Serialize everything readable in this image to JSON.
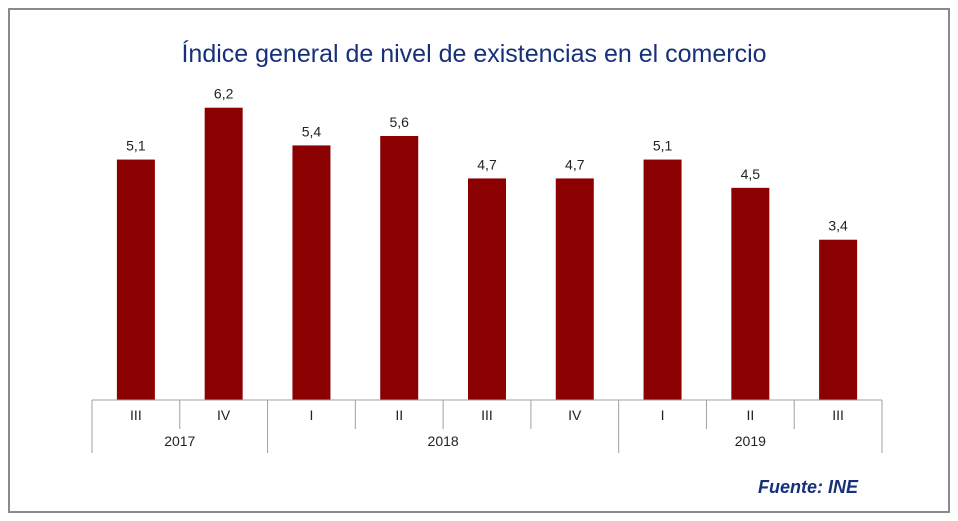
{
  "title": "Índice general de nivel de existencias en el comercio",
  "source": "Fuente: INE",
  "colors": {
    "bar": "#8b0000",
    "title": "#16307a",
    "axis": "#a0a0a0"
  },
  "chart_data": {
    "type": "bar",
    "title": "Índice general de nivel de existencias en el comercio",
    "categories": [
      "III",
      "IV",
      "I",
      "II",
      "III",
      "IV",
      "I",
      "II",
      "III"
    ],
    "groups": [
      {
        "label": "2017",
        "count": 2
      },
      {
        "label": "2018",
        "count": 4
      },
      {
        "label": "2019",
        "count": 3
      }
    ],
    "values": [
      5.1,
      6.2,
      5.4,
      5.6,
      4.7,
      4.7,
      5.1,
      4.5,
      3.4
    ],
    "value_labels": [
      "5,1",
      "6,2",
      "5,4",
      "5,6",
      "4,7",
      "4,7",
      "5,1",
      "4,5",
      "3,4"
    ],
    "xlabel": "",
    "ylabel": "",
    "ylim": [
      0,
      7
    ],
    "grid": false,
    "legend": "none"
  }
}
